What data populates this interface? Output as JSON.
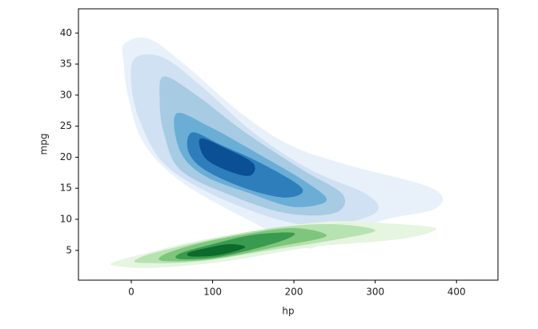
{
  "chart_data": {
    "type": "kde",
    "x_label": "hp",
    "y_label": "mpg",
    "xlim": [
      -65,
      451
    ],
    "ylim": [
      0.2,
      43.9
    ],
    "xticks": [
      0,
      100,
      200,
      300,
      400
    ],
    "yticks": [
      5,
      10,
      15,
      20,
      25,
      30,
      35,
      40
    ],
    "series": [
      {
        "colors": [
          "#e8f1fa",
          "#cfe1f2",
          "#a6cbe3",
          "#6aaed6",
          "#2e7ebc",
          "#0b4f94"
        ],
        "levels": [
          {
            "x": [
              -9,
              21,
              65,
              134,
              193,
              262,
              370,
              375,
              311,
              242,
              213,
              154,
              65,
              16,
              -4,
              -9
            ],
            "y": [
              38.2,
              39.1,
              35,
              27.2,
              22.1,
              18.9,
              15,
              11.8,
              9.9,
              6.7,
              5.4,
              9.2,
              15.7,
              22.1,
              29.8,
              35
            ]
          },
          {
            "x": [
              5,
              40,
              90,
              150,
              220,
              290,
              300,
              240,
              180,
              100,
              40,
              10,
              0
            ],
            "y": [
              36,
              36,
              31,
              24,
              18,
              14,
              11,
              9,
              10,
              14,
              19,
              26,
              32
            ]
          },
          {
            "x": [
              40,
              80,
              140,
              210,
              260,
              250,
              190,
              120,
              60,
              40,
              35
            ],
            "y": [
              33,
              30,
              24,
              18,
              14,
              11,
              11,
              14,
              18,
              24,
              29
            ]
          },
          {
            "x": [
              55,
              95,
              150,
              215,
              240,
              200,
              150,
              90,
              60
            ],
            "y": [
              27,
              25,
              21,
              16,
              13,
              12,
              14,
              17,
              21
            ]
          },
          {
            "x": [
              75,
              110,
              160,
              210,
              190,
              140,
              90,
              70
            ],
            "y": [
              24,
              22,
              19,
              15,
              13.5,
              15,
              18,
              21
            ]
          },
          {
            "x": [
              85,
              115,
              150,
              145,
              115,
              90
            ],
            "y": [
              23,
              21.5,
              19,
              17,
              18,
              20
            ]
          }
        ]
      },
      {
        "colors": [
          "#e5f5e0",
          "#b7e2b1",
          "#7dc67b",
          "#3a9a4f",
          "#0b6a2c"
        ],
        "levels": [
          {
            "x": [
              -20,
              30,
              120,
              220,
              330,
              375,
              320,
              250,
              170,
              80,
              20,
              -20
            ],
            "y": [
              2.5,
              2.2,
              3.3,
              5.5,
              6.8,
              8.5,
              9.3,
              9.7,
              8.5,
              6.5,
              4.6,
              3.2
            ]
          },
          {
            "x": [
              10,
              80,
              170,
              250,
              300,
              250,
              180,
              100,
              40,
              10
            ],
            "y": [
              3,
              3.2,
              5,
              6.7,
              8.2,
              9.2,
              8.7,
              6.8,
              5,
              3.8
            ]
          },
          {
            "x": [
              40,
              100,
              180,
              240,
              200,
              140,
              80,
              40
            ],
            "y": [
              3.3,
              3.6,
              5.6,
              7.3,
              8.6,
              7.6,
              6,
              4.3
            ]
          },
          {
            "x": [
              60,
              110,
              180,
              200,
              150,
              100,
              60
            ],
            "y": [
              3.6,
              4,
              6.3,
              7.8,
              7.5,
              6,
              4.5
            ]
          },
          {
            "x": [
              75,
              110,
              140,
              120,
              90,
              70
            ],
            "y": [
              4,
              4.3,
              5.5,
              6,
              5.3,
              4.6
            ]
          }
        ]
      }
    ]
  }
}
